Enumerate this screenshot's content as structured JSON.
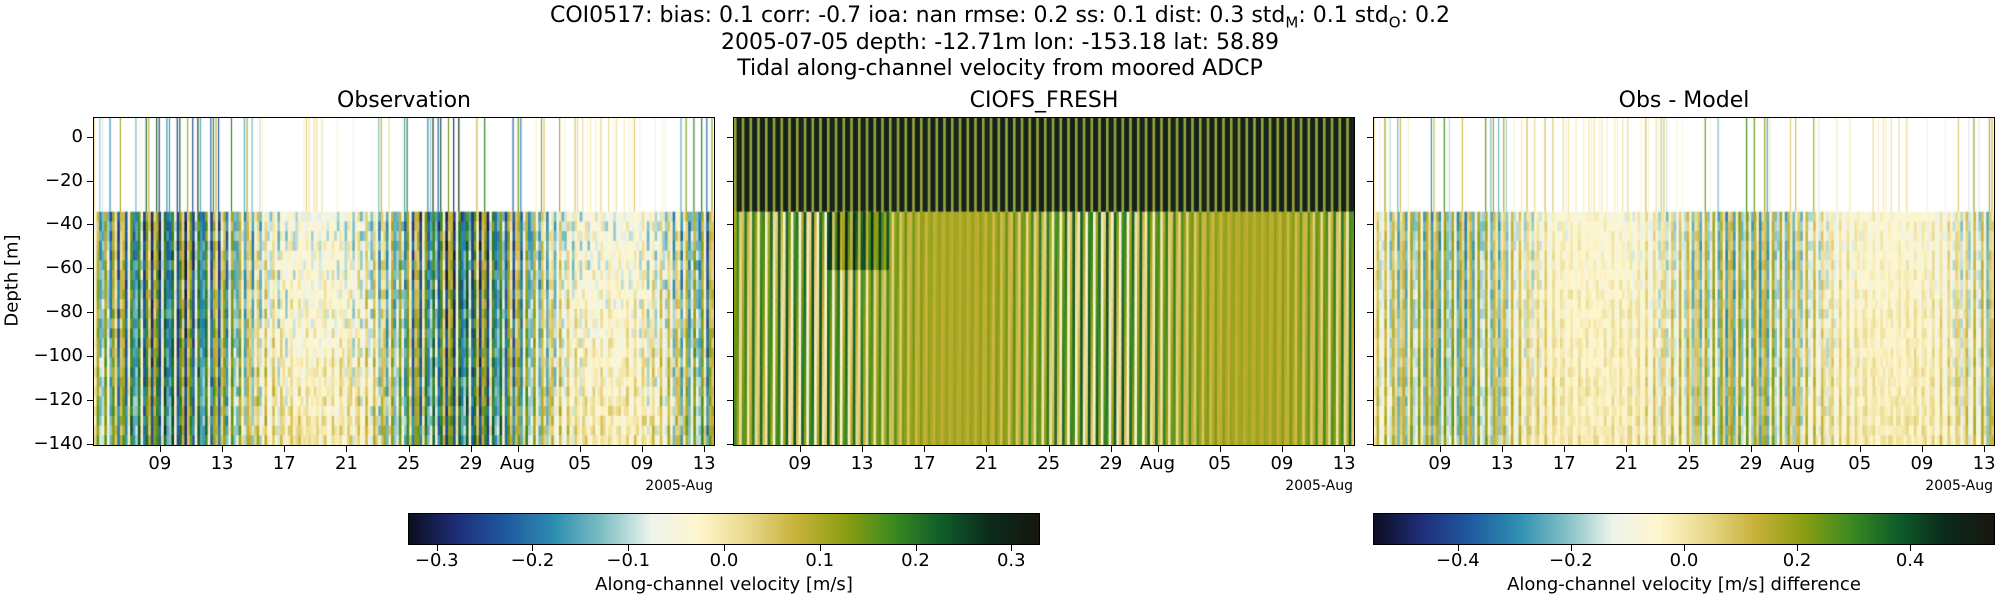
{
  "header": {
    "stats_line": {
      "prefix": "COI0517: bias: 0.1  corr: -0.7  ioa: nan  rmse: 0.2  ss: 0.1  dist: 0.3  std",
      "std_m_sub": "M",
      "mid": ": 0.1  std",
      "std_o_sub": "O",
      "suffix": ": 0.2"
    },
    "location_line": "2005-07-05 depth: -12.71m lon: -153.18 lat: 58.89",
    "description_line": "Tidal along-channel velocity from moored ADCP"
  },
  "colors": {
    "colormap": [
      "#0c0e22",
      "#1f2f7a",
      "#1f5aa0",
      "#2e8eb0",
      "#7fc0c4",
      "#eef4ec",
      "#fff6cc",
      "#e8d88a",
      "#c7b23a",
      "#8c9e12",
      "#3c8a20",
      "#0f5d2a",
      "#0c2a1c",
      "#16170e"
    ],
    "top_panel_dark": "#13221a"
  },
  "chart_data": [
    {
      "type": "heatmap",
      "title": "Observation",
      "ylabel": "Depth [m]",
      "ylim": [
        -141,
        9
      ],
      "yticks": [
        0,
        -20,
        -40,
        -60,
        -80,
        -100,
        -120,
        -140
      ],
      "ytick_labels": [
        "0",
        "−20",
        "−40",
        "−60",
        "−80",
        "−100",
        "−120",
        "−140"
      ],
      "x_range": [
        "2005-07-05",
        "2005-08-14"
      ],
      "xtick_labels": [
        "09",
        "13",
        "17",
        "21",
        "25",
        "29",
        "Aug",
        "05",
        "09",
        "13"
      ],
      "x_offset_label": "2005-Aug",
      "clim": [
        -0.33,
        0.33
      ],
      "profile_top_depth_m": -34,
      "colorbar_index": 0
    },
    {
      "type": "heatmap",
      "title": "CIOFS_FRESH",
      "ylim": [
        -141,
        9
      ],
      "yticks": [
        0,
        -20,
        -40,
        -60,
        -80,
        -100,
        -120,
        -140
      ],
      "x_range": [
        "2005-07-05",
        "2005-08-14"
      ],
      "xtick_labels": [
        "09",
        "13",
        "17",
        "21",
        "25",
        "29",
        "Aug",
        "05",
        "09",
        "13"
      ],
      "x_offset_label": "2005-Aug",
      "clim": [
        -0.33,
        0.33
      ],
      "profile_top_depth_m": -34,
      "colorbar_index": 0
    },
    {
      "type": "heatmap",
      "title": "Obs - Model",
      "ylim": [
        -141,
        9
      ],
      "yticks": [
        0,
        -20,
        -40,
        -60,
        -80,
        -100,
        -120,
        -140
      ],
      "x_range": [
        "2005-07-05",
        "2005-08-14"
      ],
      "xtick_labels": [
        "09",
        "13",
        "17",
        "21",
        "25",
        "29",
        "Aug",
        "05",
        "09",
        "13"
      ],
      "x_offset_label": "2005-Aug",
      "clim": [
        -0.55,
        0.55
      ],
      "profile_top_depth_m": -34,
      "colorbar_index": 1
    }
  ],
  "colorbars": [
    {
      "label": "Along-channel velocity [m/s]",
      "range": [
        -0.33,
        0.33
      ],
      "ticks": [
        -0.3,
        -0.2,
        -0.1,
        0.0,
        0.1,
        0.2,
        0.3
      ],
      "tick_labels": [
        "−0.3",
        "−0.2",
        "−0.1",
        "0.0",
        "0.1",
        "0.2",
        "0.3"
      ]
    },
    {
      "label": "Along-channel velocity [m/s] difference",
      "range": [
        -0.55,
        0.55
      ],
      "ticks": [
        -0.4,
        -0.2,
        0.0,
        0.2,
        0.4
      ],
      "tick_labels": [
        "−0.4",
        "−0.2",
        "0.0",
        "0.2",
        "0.4"
      ]
    }
  ]
}
